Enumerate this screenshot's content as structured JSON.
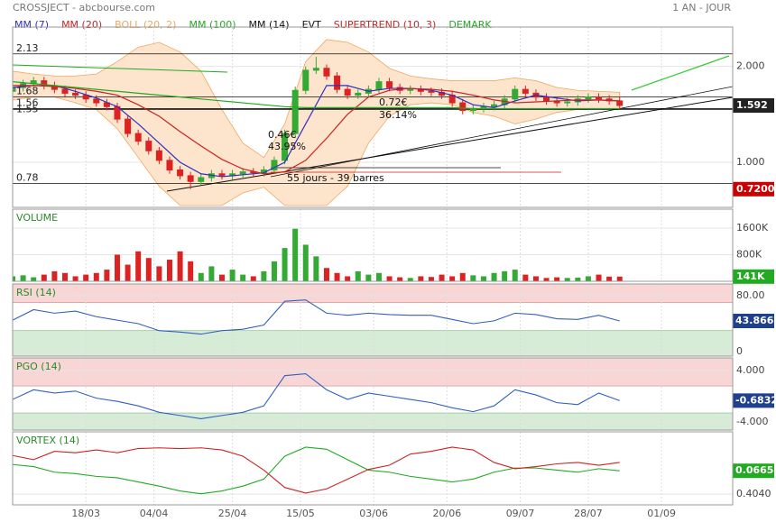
{
  "chart_data": [
    {
      "type": "candlestick",
      "title": "CROSSJECT - abcbourse.com",
      "subtitle": "1 AN - JOUR",
      "x": [
        0,
        2,
        4,
        6,
        8,
        10,
        12,
        14,
        16,
        18,
        20,
        22,
        24,
        26,
        28,
        30,
        32,
        34,
        36,
        38,
        40,
        42,
        44,
        46,
        48,
        50,
        52,
        54,
        56,
        58,
        60,
        62,
        64,
        66,
        68,
        70,
        72,
        74,
        76,
        78,
        80,
        82,
        84,
        86,
        88,
        90,
        92,
        94,
        96,
        98,
        100,
        102,
        104,
        106,
        108,
        110,
        112,
        114,
        116
      ],
      "open": [
        1.74,
        1.78,
        1.82,
        1.85,
        1.8,
        1.76,
        1.72,
        1.7,
        1.66,
        1.62,
        1.58,
        1.45,
        1.3,
        1.22,
        1.12,
        1.02,
        0.92,
        0.86,
        0.8,
        0.84,
        0.88,
        0.86,
        0.88,
        0.9,
        0.89,
        0.92,
        1.02,
        1.3,
        1.75,
        1.96,
        1.98,
        1.9,
        1.76,
        1.7,
        1.72,
        1.76,
        1.84,
        1.78,
        1.75,
        1.76,
        1.74,
        1.73,
        1.7,
        1.62,
        1.54,
        1.56,
        1.58,
        1.6,
        1.66,
        1.76,
        1.72,
        1.68,
        1.64,
        1.62,
        1.63,
        1.66,
        1.68,
        1.66,
        1.64
      ],
      "high": [
        1.82,
        1.86,
        1.89,
        1.89,
        1.84,
        1.8,
        1.76,
        1.74,
        1.7,
        1.66,
        1.62,
        1.49,
        1.34,
        1.26,
        1.16,
        1.06,
        0.96,
        0.9,
        0.88,
        0.92,
        0.92,
        0.92,
        0.94,
        0.94,
        0.96,
        1.06,
        1.34,
        1.79,
        2.0,
        2.1,
        2.02,
        1.94,
        1.8,
        1.76,
        1.8,
        1.88,
        1.88,
        1.82,
        1.8,
        1.8,
        1.78,
        1.77,
        1.74,
        1.66,
        1.6,
        1.62,
        1.64,
        1.7,
        1.8,
        1.8,
        1.76,
        1.72,
        1.68,
        1.67,
        1.7,
        1.72,
        1.72,
        1.7,
        1.68
      ],
      "low": [
        1.7,
        1.74,
        1.78,
        1.76,
        1.72,
        1.68,
        1.66,
        1.62,
        1.58,
        1.54,
        1.41,
        1.26,
        1.18,
        1.08,
        0.98,
        0.88,
        0.82,
        0.72,
        0.76,
        0.8,
        0.82,
        0.82,
        0.84,
        0.85,
        0.85,
        0.88,
        0.98,
        1.26,
        1.71,
        1.92,
        1.86,
        1.72,
        1.66,
        1.66,
        1.68,
        1.72,
        1.74,
        1.71,
        1.71,
        1.7,
        1.69,
        1.66,
        1.58,
        1.5,
        1.5,
        1.52,
        1.54,
        1.56,
        1.62,
        1.68,
        1.64,
        1.6,
        1.58,
        1.58,
        1.59,
        1.62,
        1.62,
        1.6,
        1.55
      ],
      "close": [
        1.78,
        1.82,
        1.85,
        1.8,
        1.76,
        1.72,
        1.7,
        1.66,
        1.62,
        1.58,
        1.45,
        1.3,
        1.22,
        1.12,
        1.02,
        0.92,
        0.86,
        0.8,
        0.84,
        0.88,
        0.86,
        0.88,
        0.9,
        0.89,
        0.92,
        1.02,
        1.3,
        1.75,
        1.96,
        1.98,
        1.9,
        1.76,
        1.7,
        1.72,
        1.76,
        1.84,
        1.78,
        1.75,
        1.76,
        1.74,
        1.73,
        1.7,
        1.62,
        1.54,
        1.56,
        1.58,
        1.6,
        1.66,
        1.76,
        1.72,
        1.68,
        1.64,
        1.62,
        1.63,
        1.66,
        1.68,
        1.66,
        1.64,
        1.592
      ],
      "up_color": "#33aa33",
      "down_color": "#dd2222",
      "last_badge_color": "#222222",
      "xlim": [
        0,
        137.6
      ],
      "xticks": [
        {
          "value": 14,
          "label": "18/03"
        },
        {
          "value": 27,
          "label": "04/04"
        },
        {
          "value": 42,
          "label": "25/04"
        },
        {
          "value": 55,
          "label": "15/05"
        },
        {
          "value": 69,
          "label": "03/06"
        },
        {
          "value": 83,
          "label": "20/06"
        },
        {
          "value": 97,
          "label": "09/07"
        },
        {
          "value": 110,
          "label": "28/07"
        },
        {
          "value": 124,
          "label": "01/09"
        }
      ],
      "ylim": [
        0.53,
        2.41
      ],
      "yticks": [
        {
          "value": 1,
          "label": "1.000"
        },
        {
          "value": 2,
          "label": "2.000"
        }
      ],
      "levels": [
        2.13,
        1.68,
        1.56,
        1.55,
        0.78
      ],
      "band": {
        "name": "BOLL (20, 2)",
        "color": "#f0a860",
        "fill": "#fde4cc",
        "x": [
          0,
          4,
          8,
          12,
          16,
          20,
          24,
          28,
          32,
          36,
          40,
          44,
          48,
          52,
          56,
          60,
          64,
          68,
          72,
          76,
          80,
          84,
          88,
          92,
          96,
          100,
          104,
          108,
          112,
          116
        ],
        "upper": [
          1.95,
          1.92,
          1.9,
          1.9,
          1.92,
          2.05,
          2.2,
          2.25,
          2.15,
          1.95,
          1.55,
          1.2,
          1.05,
          1.4,
          2.05,
          2.28,
          2.25,
          2.15,
          1.98,
          1.9,
          1.87,
          1.85,
          1.85,
          1.85,
          1.88,
          1.85,
          1.78,
          1.75,
          1.74,
          1.73
        ],
        "lower": [
          1.65,
          1.68,
          1.68,
          1.62,
          1.55,
          1.35,
          1.05,
          0.75,
          0.55,
          0.55,
          0.55,
          0.68,
          0.74,
          0.55,
          0.55,
          0.55,
          0.75,
          1.2,
          1.48,
          1.6,
          1.62,
          1.6,
          1.52,
          1.48,
          1.4,
          1.45,
          1.52,
          1.55,
          1.56,
          1.55
        ]
      },
      "series": [
        {
          "name": "MM (7)",
          "color": "#3030c0",
          "x": [
            0,
            4,
            8,
            12,
            16,
            20,
            24,
            28,
            32,
            36,
            40,
            44,
            48,
            52,
            56,
            60,
            64,
            68,
            72,
            76,
            80,
            84,
            88,
            92,
            96,
            100,
            104,
            108,
            112,
            116
          ],
          "values": [
            1.78,
            1.8,
            1.8,
            1.74,
            1.67,
            1.58,
            1.4,
            1.2,
            1.0,
            0.88,
            0.85,
            0.87,
            0.89,
            1.0,
            1.4,
            1.8,
            1.8,
            1.74,
            1.77,
            1.77,
            1.75,
            1.7,
            1.6,
            1.57,
            1.64,
            1.7,
            1.67,
            1.64,
            1.65,
            1.64
          ]
        },
        {
          "name": "MM (20)",
          "color": "#cc2222",
          "x": [
            0,
            4,
            8,
            12,
            16,
            20,
            24,
            28,
            32,
            36,
            40,
            44,
            48,
            52,
            56,
            60,
            64,
            68,
            72,
            76,
            80,
            84,
            88,
            92,
            96,
            100,
            104,
            108,
            112,
            116
          ],
          "values": [
            1.8,
            1.8,
            1.79,
            1.77,
            1.74,
            1.7,
            1.6,
            1.48,
            1.32,
            1.17,
            1.03,
            0.93,
            0.88,
            0.9,
            1.02,
            1.25,
            1.5,
            1.68,
            1.75,
            1.77,
            1.76,
            1.74,
            1.7,
            1.65,
            1.62,
            1.63,
            1.64,
            1.65,
            1.65,
            1.64
          ]
        },
        {
          "name": "MM (100)",
          "color": "#22aa22",
          "x": [
            0,
            4,
            8,
            12,
            16,
            20,
            24,
            28,
            32,
            36,
            40,
            44,
            48,
            52,
            56,
            60,
            64,
            68,
            72,
            76,
            80,
            84,
            88,
            92,
            96,
            100,
            104,
            108,
            112,
            116
          ],
          "values": [
            1.84,
            1.82,
            1.8,
            1.78,
            1.76,
            1.74,
            1.72,
            1.7,
            1.68,
            1.66,
            1.64,
            1.62,
            1.6,
            1.58,
            1.57,
            1.57,
            1.57,
            1.57,
            1.57,
            1.57,
            1.57,
            1.57,
            1.56,
            1.56,
            1.56,
            1.56,
            1.56,
            1.56,
            1.56,
            1.56
          ]
        }
      ],
      "other_indicators": [
        {
          "name": "MM (14)",
          "color": "#111111"
        },
        {
          "name": "EVT",
          "color": "#111111"
        },
        {
          "name": "SUPERTREND (10, 3)",
          "color": "#cc2222"
        },
        {
          "name": "DEMARK",
          "color": "#22aa22"
        }
      ],
      "annotations": [
        "0.46€",
        "43.95%",
        "0.72€",
        "36.14%",
        "55 jours - 39 barres"
      ],
      "low_badge": {
        "value": 0.72,
        "label": "0.7200",
        "color": "#cc0000"
      }
    },
    {
      "type": "bar",
      "title": "VOLUME",
      "badge_color": "#22aa22",
      "x": [
        0,
        2,
        4,
        6,
        8,
        10,
        12,
        14,
        16,
        18,
        20,
        22,
        24,
        26,
        28,
        30,
        32,
        34,
        36,
        38,
        40,
        42,
        44,
        46,
        48,
        50,
        52,
        54,
        56,
        58,
        60,
        62,
        64,
        66,
        68,
        70,
        72,
        74,
        76,
        78,
        80,
        82,
        84,
        86,
        88,
        90,
        92,
        94,
        96,
        98,
        100,
        102,
        104,
        106,
        108,
        110,
        112,
        114,
        116
      ],
      "values": [
        150000,
        180000,
        120000,
        200000,
        300000,
        250000,
        150000,
        200000,
        250000,
        350000,
        800000,
        500000,
        900000,
        700000,
        450000,
        650000,
        900000,
        600000,
        250000,
        450000,
        200000,
        350000,
        200000,
        150000,
        300000,
        600000,
        1000000,
        1580000,
        1100000,
        750000,
        400000,
        250000,
        150000,
        300000,
        200000,
        250000,
        150000,
        120000,
        100000,
        150000,
        130000,
        200000,
        150000,
        250000,
        180000,
        150000,
        250000,
        300000,
        350000,
        200000,
        150000,
        100000,
        120000,
        100000,
        110000,
        150000,
        200000,
        140000,
        141000
      ],
      "last_badge": {
        "value": 141000,
        "label": "141K"
      },
      "xlim": [
        0,
        137.6
      ],
      "ylim": [
        0,
        2170000
      ],
      "yticks": [
        {
          "value": 1600000,
          "label": "1600K"
        },
        {
          "value": 800000,
          "label": "800K"
        }
      ]
    },
    {
      "type": "line",
      "title": "RSI (14)",
      "badge_color": "#1f3f8f",
      "x": [
        0,
        4,
        8,
        12,
        16,
        20,
        24,
        28,
        32,
        36,
        40,
        44,
        48,
        52,
        56,
        60,
        64,
        68,
        72,
        76,
        80,
        84,
        88,
        92,
        96,
        100,
        104,
        108,
        112,
        116
      ],
      "series": [
        {
          "color": "#3060c0",
          "values": [
            45,
            60,
            55,
            58,
            50,
            45,
            40,
            30,
            28,
            25,
            30,
            32,
            38,
            72,
            74,
            55,
            52,
            55,
            53,
            52,
            52,
            46,
            40,
            44,
            55,
            53,
            47,
            46,
            52,
            43.866
          ]
        }
      ],
      "upper_zone": {
        "from": 70,
        "color": "#f9d6d6"
      },
      "lower_zone": {
        "from": 30,
        "color": "#d6ecd6"
      },
      "xlim": [
        0,
        137.6
      ],
      "ylim": [
        -6.5,
        96.8
      ],
      "yticks": [
        {
          "value": 80,
          "label": "80.00"
        },
        0
      ]
    },
    {
      "type": "line",
      "title": "PGO (14)",
      "badge_color": "#1f3f8f",
      "x": [
        0,
        4,
        8,
        12,
        16,
        20,
        24,
        28,
        32,
        36,
        40,
        44,
        48,
        52,
        56,
        60,
        64,
        68,
        72,
        76,
        80,
        84,
        88,
        92,
        96,
        100,
        104,
        108,
        112,
        116
      ],
      "series": [
        {
          "color": "#3060c0",
          "values": [
            -0.5,
            1,
            0.5,
            0.8,
            -0.3,
            -0.8,
            -1.5,
            -2.5,
            -3,
            -3.5,
            -3,
            -2.5,
            -1.5,
            3.2,
            3.5,
            1,
            -0.5,
            0.5,
            0,
            -0.5,
            -1,
            -1.8,
            -2.4,
            -1.5,
            1,
            0.2,
            -1,
            -1.3,
            0.5,
            -0.6832
          ]
        }
      ],
      "upper_zone": {
        "from": 1.6,
        "color": "#f9d6d6"
      },
      "lower_zone": {
        "from": -2.6,
        "color": "#d6ecd6"
      },
      "xlim": [
        0,
        137.6
      ],
      "ylim": [
        -5.26,
        5.96
      ],
      "yticks": [
        {
          "value": 4,
          "label": "4.000"
        },
        {
          "value": -4,
          "label": "-4.000"
        }
      ]
    },
    {
      "type": "line",
      "title": "VORTEX (14)",
      "x": [
        0,
        4,
        8,
        12,
        16,
        20,
        24,
        28,
        32,
        36,
        40,
        44,
        48,
        52,
        56,
        60,
        64,
        68,
        72,
        76,
        80,
        84,
        88,
        92,
        96,
        100,
        104,
        108,
        112,
        116
      ],
      "series": [
        {
          "color": "#22aa22",
          "values": [
            0.83,
            0.8,
            0.72,
            0.7,
            0.66,
            0.64,
            0.58,
            0.52,
            0.45,
            0.41,
            0.45,
            0.52,
            0.62,
            0.95,
            1.08,
            1.05,
            0.9,
            0.75,
            0.72,
            0.66,
            0.62,
            0.58,
            0.62,
            0.72,
            0.78,
            0.78,
            0.75,
            0.72,
            0.77,
            0.74
          ]
        },
        {
          "color": "#cc2222",
          "values": [
            0.96,
            0.9,
            1.02,
            1.0,
            1.04,
            1.0,
            1.06,
            1.07,
            1.06,
            1.07,
            1.04,
            0.95,
            0.75,
            0.5,
            0.42,
            0.48,
            0.62,
            0.76,
            0.82,
            0.98,
            1.02,
            1.08,
            1.04,
            0.86,
            0.77,
            0.8,
            0.84,
            0.86,
            0.82,
            0.86
          ]
        }
      ],
      "badge": {
        "label": "0.0665",
        "color": "#22aa22"
      },
      "xlim": [
        0,
        137.6
      ],
      "ylim": [
        0.25,
        1.3
      ],
      "yticks": [
        {
          "value": 0.404,
          "label": "0.4040"
        }
      ]
    }
  ]
}
